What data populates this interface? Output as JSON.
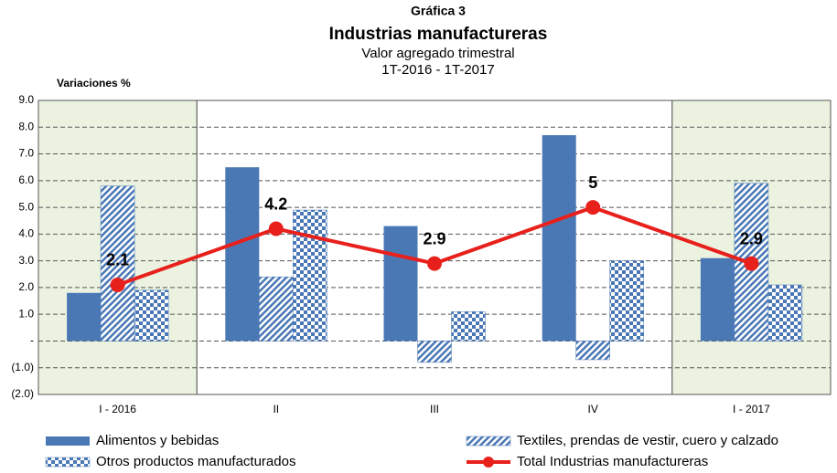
{
  "chart_data": {
    "type": "bar_line",
    "title": "Gráfica 3",
    "subtitle": "Industrias manufactureras",
    "subtitle2": "Valor agregado trimestral",
    "subtitle3": "1T-2016 - 1T-2017",
    "y_axis_label": "Variaciones %",
    "categories": [
      "I - 2016",
      "II",
      "III",
      "IV",
      "I - 2017"
    ],
    "series": [
      {
        "name": "Alimentos y bebidas",
        "type": "bar",
        "pattern": "solid",
        "color": "#4a78b5",
        "values": [
          1.8,
          6.5,
          4.3,
          7.7,
          3.1
        ]
      },
      {
        "name": "Textiles, prendas de vestir, cuero y calzado",
        "type": "bar",
        "pattern": "hatch",
        "color": "#4a78b5",
        "values": [
          5.8,
          2.4,
          -0.8,
          -0.7,
          5.9
        ]
      },
      {
        "name": "Otros productos manufacturados",
        "type": "bar",
        "pattern": "checker",
        "color": "#4a78b5",
        "values": [
          1.9,
          4.9,
          1.1,
          3.0,
          2.1
        ]
      },
      {
        "name": "Total Industrias manufactureras",
        "type": "line",
        "color": "#e8201c",
        "values": [
          2.1,
          4.2,
          2.9,
          5.0,
          2.9
        ]
      }
    ],
    "ylim": [
      -2,
      9
    ],
    "yticks": [
      {
        "value": -2,
        "label": "(2.0)"
      },
      {
        "value": -1,
        "label": "(1.0)"
      },
      {
        "value": 0,
        "label": "-"
      },
      {
        "value": 1,
        "label": "1.0"
      },
      {
        "value": 2,
        "label": "2.0"
      },
      {
        "value": 3,
        "label": "3.0"
      },
      {
        "value": 4,
        "label": "4.0"
      },
      {
        "value": 5,
        "label": "5.0"
      },
      {
        "value": 6,
        "label": "6.0"
      },
      {
        "value": 7,
        "label": "7.0"
      },
      {
        "value": 8,
        "label": "8.0"
      },
      {
        "value": 9,
        "label": "9.0"
      }
    ],
    "grid": true,
    "shaded_categories": [
      0,
      4
    ],
    "shade_color": "#ebf3e0",
    "legend": "bottom"
  }
}
